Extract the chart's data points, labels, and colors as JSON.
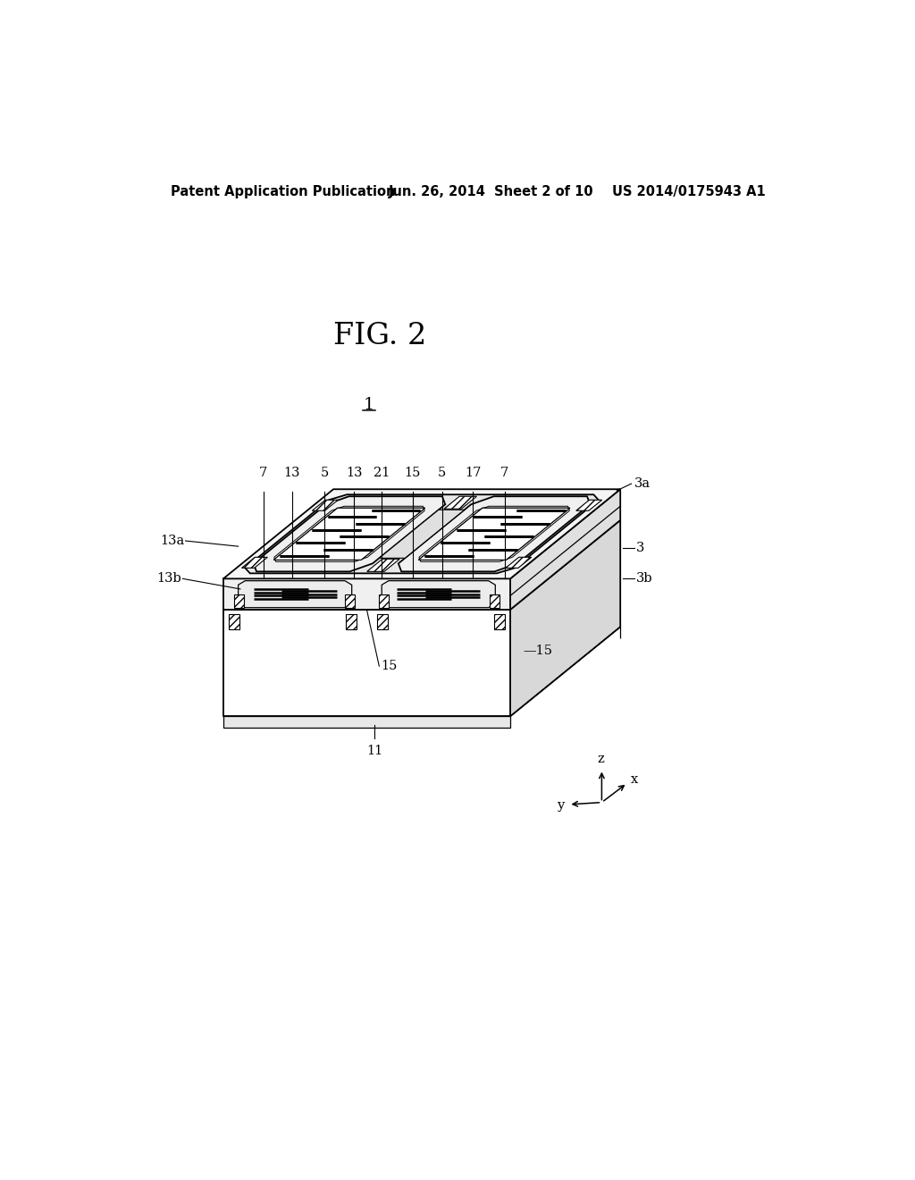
{
  "bg_color": "#ffffff",
  "header_left": "Patent Application Publication",
  "header_center": "Jun. 26, 2014  Sheet 2 of 10",
  "header_right": "US 2014/0175943 A1",
  "fig_label": "FIG. 2",
  "component_label": "1",
  "labels_top": [
    "7",
    "13",
    "5",
    "13",
    "21",
    "15",
    "5",
    "17",
    "7",
    "3a"
  ],
  "label_13a": "13a",
  "label_13b": "13b",
  "label_3": "3",
  "label_3b": "3b",
  "label_15": "15",
  "label_11": "11",
  "axis_z": "z",
  "axis_x": "x",
  "axis_y": "y",
  "lw_main": 1.3,
  "lw_thin": 0.9
}
